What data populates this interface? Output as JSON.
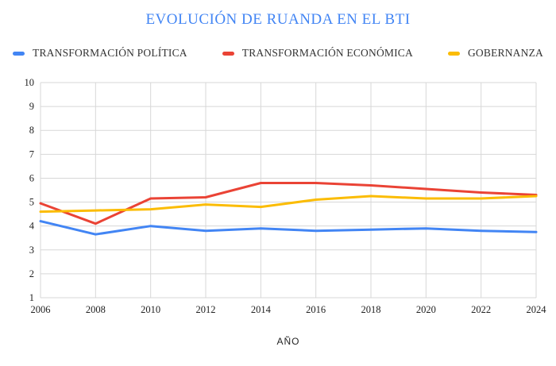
{
  "chart_data": {
    "type": "line",
    "title": "EVOLUCIÓN DE RUANDA EN EL BTI",
    "xlabel": "AÑO",
    "ylabel": "",
    "x": [
      2006,
      2008,
      2010,
      2012,
      2014,
      2016,
      2018,
      2020,
      2022,
      2024
    ],
    "series": [
      {
        "name": "TRANSFORMACIÓN POLÍTICA",
        "color": "#4285F4",
        "values": [
          4.2,
          3.65,
          4.0,
          3.8,
          3.9,
          3.8,
          3.85,
          3.9,
          3.8,
          3.75
        ]
      },
      {
        "name": "TRANSFORMACIÓN ECONÓMICA",
        "color": "#EA4335",
        "values": [
          4.95,
          4.1,
          5.15,
          5.2,
          5.8,
          5.8,
          5.7,
          5.55,
          5.4,
          5.3
        ]
      },
      {
        "name": "GOBERNANZA",
        "color": "#FBBC04",
        "values": [
          4.6,
          4.65,
          4.7,
          4.9,
          4.8,
          5.1,
          5.25,
          5.15,
          5.15,
          5.25
        ]
      }
    ],
    "ylim": [
      1,
      10
    ],
    "yticks": [
      1,
      2,
      3,
      4,
      5,
      6,
      7,
      8,
      9,
      10
    ],
    "grid": true,
    "legend_position": "top"
  },
  "colors": {
    "title": "#4285F4",
    "grid": "#d7d7d7",
    "tick_text": "#222222",
    "legend_text": "#333333",
    "background": "#ffffff"
  }
}
